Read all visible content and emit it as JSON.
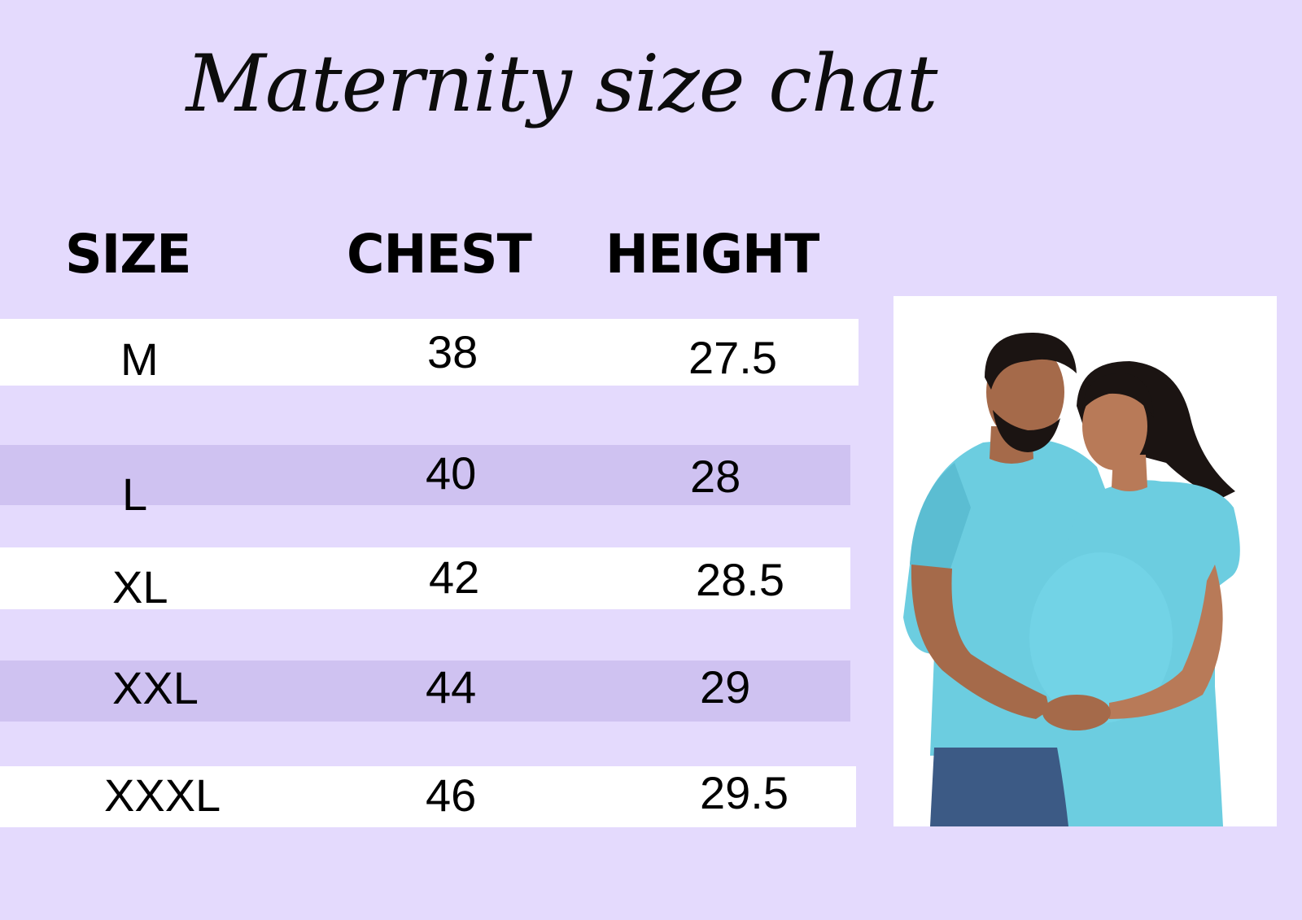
{
  "title": "Maternity size chat",
  "headers": {
    "size": "SIZE",
    "chest": "CHEST",
    "height": "HEIGHT"
  },
  "rows": [
    {
      "size": "M",
      "chest": "38",
      "height": "27.5",
      "band_color": "#ffffff"
    },
    {
      "size": "L",
      "chest": "40",
      "height": "28",
      "band_color": "#cfc2f1"
    },
    {
      "size": "XL",
      "chest": "42",
      "height": "28.5",
      "band_color": "#ffffff"
    },
    {
      "size": "XXL",
      "chest": "44",
      "height": "29",
      "band_color": "#cfc2f1"
    },
    {
      "size": "XXXL",
      "chest": "46",
      "height": "29.5",
      "band_color": "#ffffff"
    }
  ],
  "colors": {
    "background": "#e4dafd",
    "shirt": "#6ccde0",
    "jeans": "#3c5a85",
    "hair": "#1b1412",
    "skin": "#a56a4a"
  },
  "photo": {
    "subject": "expecting-couple-in-matching-blue-tees"
  }
}
